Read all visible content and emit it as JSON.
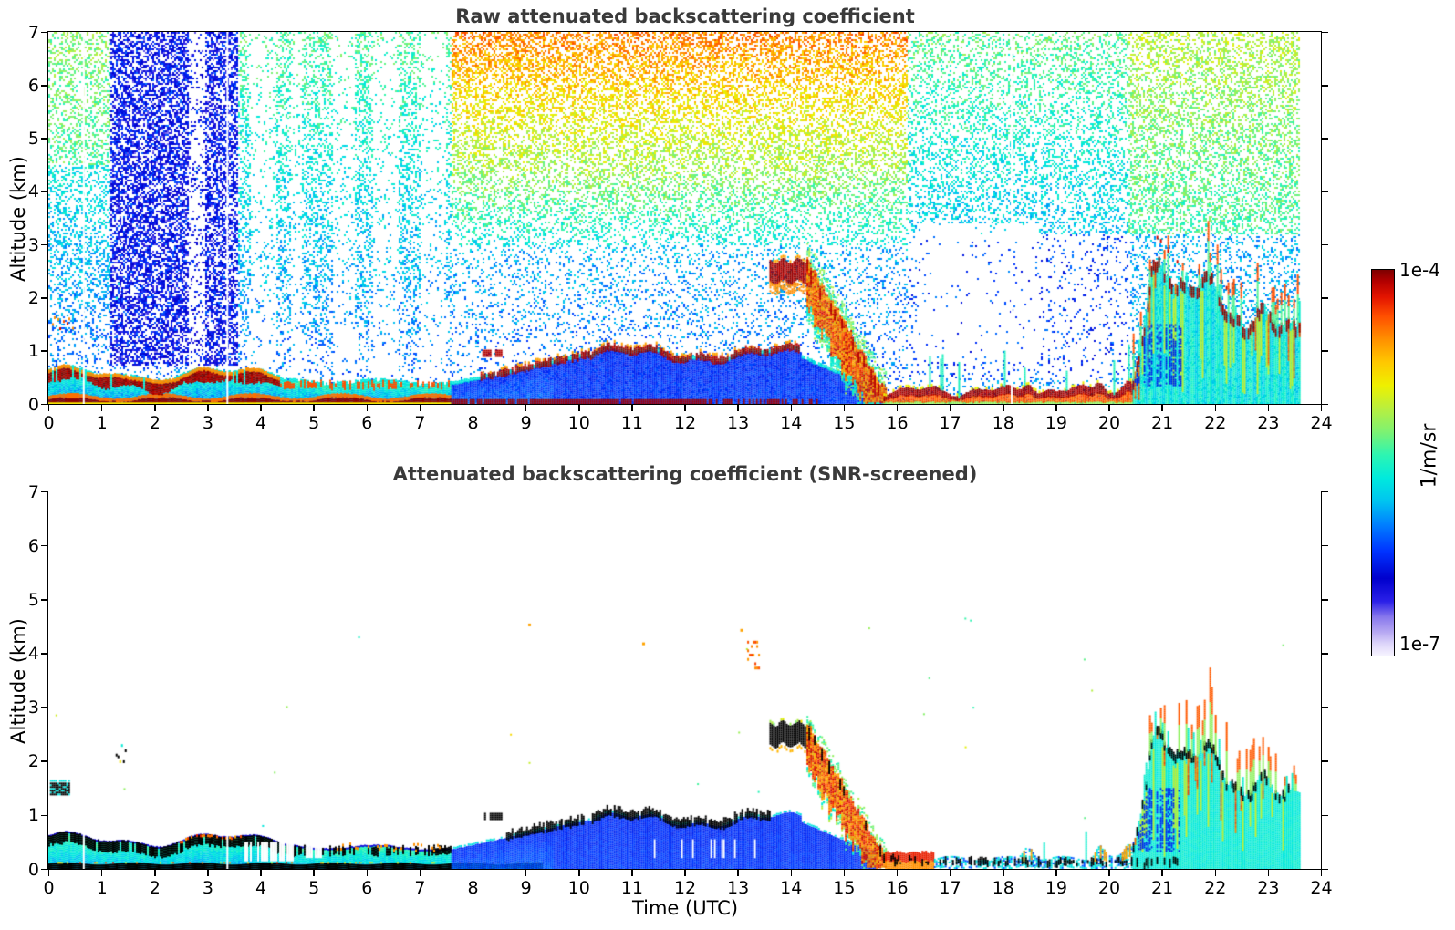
{
  "panels": [
    {
      "id": "raw",
      "title": "Raw attenuated backscattering coefficient"
    },
    {
      "id": "screened",
      "title": "Attenuated backscattering coefficient (SNR-screened)"
    }
  ],
  "axes": {
    "x_label": "Time (UTC)",
    "y_label": "Altitude (km)",
    "x_ticks": [
      0,
      1,
      2,
      3,
      4,
      5,
      6,
      7,
      8,
      9,
      10,
      11,
      12,
      13,
      14,
      15,
      16,
      17,
      18,
      19,
      20,
      21,
      22,
      23,
      24
    ],
    "y_ticks": [
      0,
      1,
      2,
      3,
      4,
      5,
      6,
      7
    ]
  },
  "colorbar": {
    "max_label": "1e-4",
    "min_label": "1e-7",
    "units": "1/m/sr",
    "stops": [
      [
        0.0,
        "#f6f3ff"
      ],
      [
        0.03,
        "#ded6fa"
      ],
      [
        0.06,
        "#b7a9f2"
      ],
      [
        0.1,
        "#8878ec"
      ],
      [
        0.14,
        "#2b20e8"
      ],
      [
        0.2,
        "#0000cd"
      ],
      [
        0.27,
        "#0033ff"
      ],
      [
        0.34,
        "#0080ff"
      ],
      [
        0.4,
        "#00c4f0"
      ],
      [
        0.46,
        "#00eadd"
      ],
      [
        0.52,
        "#2df5b2"
      ],
      [
        0.58,
        "#7df272"
      ],
      [
        0.64,
        "#b8ef3f"
      ],
      [
        0.7,
        "#eef000"
      ],
      [
        0.76,
        "#ffc800"
      ],
      [
        0.82,
        "#ff9000"
      ],
      [
        0.88,
        "#ff4f00"
      ],
      [
        0.93,
        "#e31400"
      ],
      [
        0.97,
        "#b30000"
      ],
      [
        1.0,
        "#7d0000"
      ]
    ]
  },
  "chart_data": {
    "type": "heatmap",
    "x": {
      "label": "Time (UTC)",
      "range": [
        0,
        24
      ],
      "units": "hours"
    },
    "y": {
      "label": "Altitude (km)",
      "range": [
        0,
        7
      ]
    },
    "value": {
      "units": "1/m/sr",
      "scale": "log",
      "min": 1e-07,
      "max": 0.0001
    },
    "data_end_hour": 23.6,
    "gap_hours": [
      0.65,
      3.36,
      18.15
    ],
    "low_density_stripe_hours": [
      [
        2.62,
        2.95
      ],
      [
        3.8,
        4.28
      ],
      [
        4.55,
        4.78
      ],
      [
        5.35,
        5.78
      ],
      [
        6.1,
        6.6
      ],
      [
        7.0,
        7.48
      ]
    ],
    "blue_noise_column_hours": [
      1.15,
      3.55
    ],
    "features": {
      "early_elevated_blob": {
        "hours": [
          0.03,
          0.38
        ],
        "z_km": [
          1.38,
          1.6
        ]
      },
      "early_specks": {
        "hours": [
          1.2,
          1.45
        ],
        "z_km": [
          2.0,
          2.35
        ]
      },
      "morning_surface_band": {
        "hours": [
          0,
          7.6
        ],
        "top_km_max": 0.68,
        "dark_layer_hours": [
          0,
          4.4
        ],
        "orange_speck_hours": [
          2.35,
          3.65
        ]
      },
      "boundary_layer": {
        "hours": [
          7.6,
          15.75
        ],
        "cap_km_start": 0.35,
        "cap_km_max": 1.0,
        "cap_dark_hours": [
          8.15,
          14.15
        ],
        "dash_hours": [
          8.1,
          8.55
        ],
        "dash_z_km": [
          0.9,
          1.05
        ]
      },
      "elevated_orange_dashes": {
        "hours": [
          13.18,
          13.42
        ],
        "z_km": [
          3.75,
          4.3
        ]
      },
      "cloud": {
        "hours": [
          13.6,
          14.38
        ],
        "base_km": 2.28,
        "top_km": 2.68
      },
      "virga": {
        "hours": [
          14.3,
          15.78
        ],
        "from_km": 2.5,
        "to_km": 0.05
      },
      "afternoon_surface_band": {
        "hours": [
          15.75,
          20.45
        ],
        "top_km": 0.3,
        "bump_hours": [
          18.35,
          19.7,
          20.25
        ]
      },
      "evening_structures": {
        "hours": [
          20.45,
          23.6
        ],
        "top_km_range": [
          1.2,
          2.75
        ],
        "spike_top_km": 3.5,
        "blue_patch_hours": [
          20.5,
          21.35
        ]
      }
    }
  }
}
